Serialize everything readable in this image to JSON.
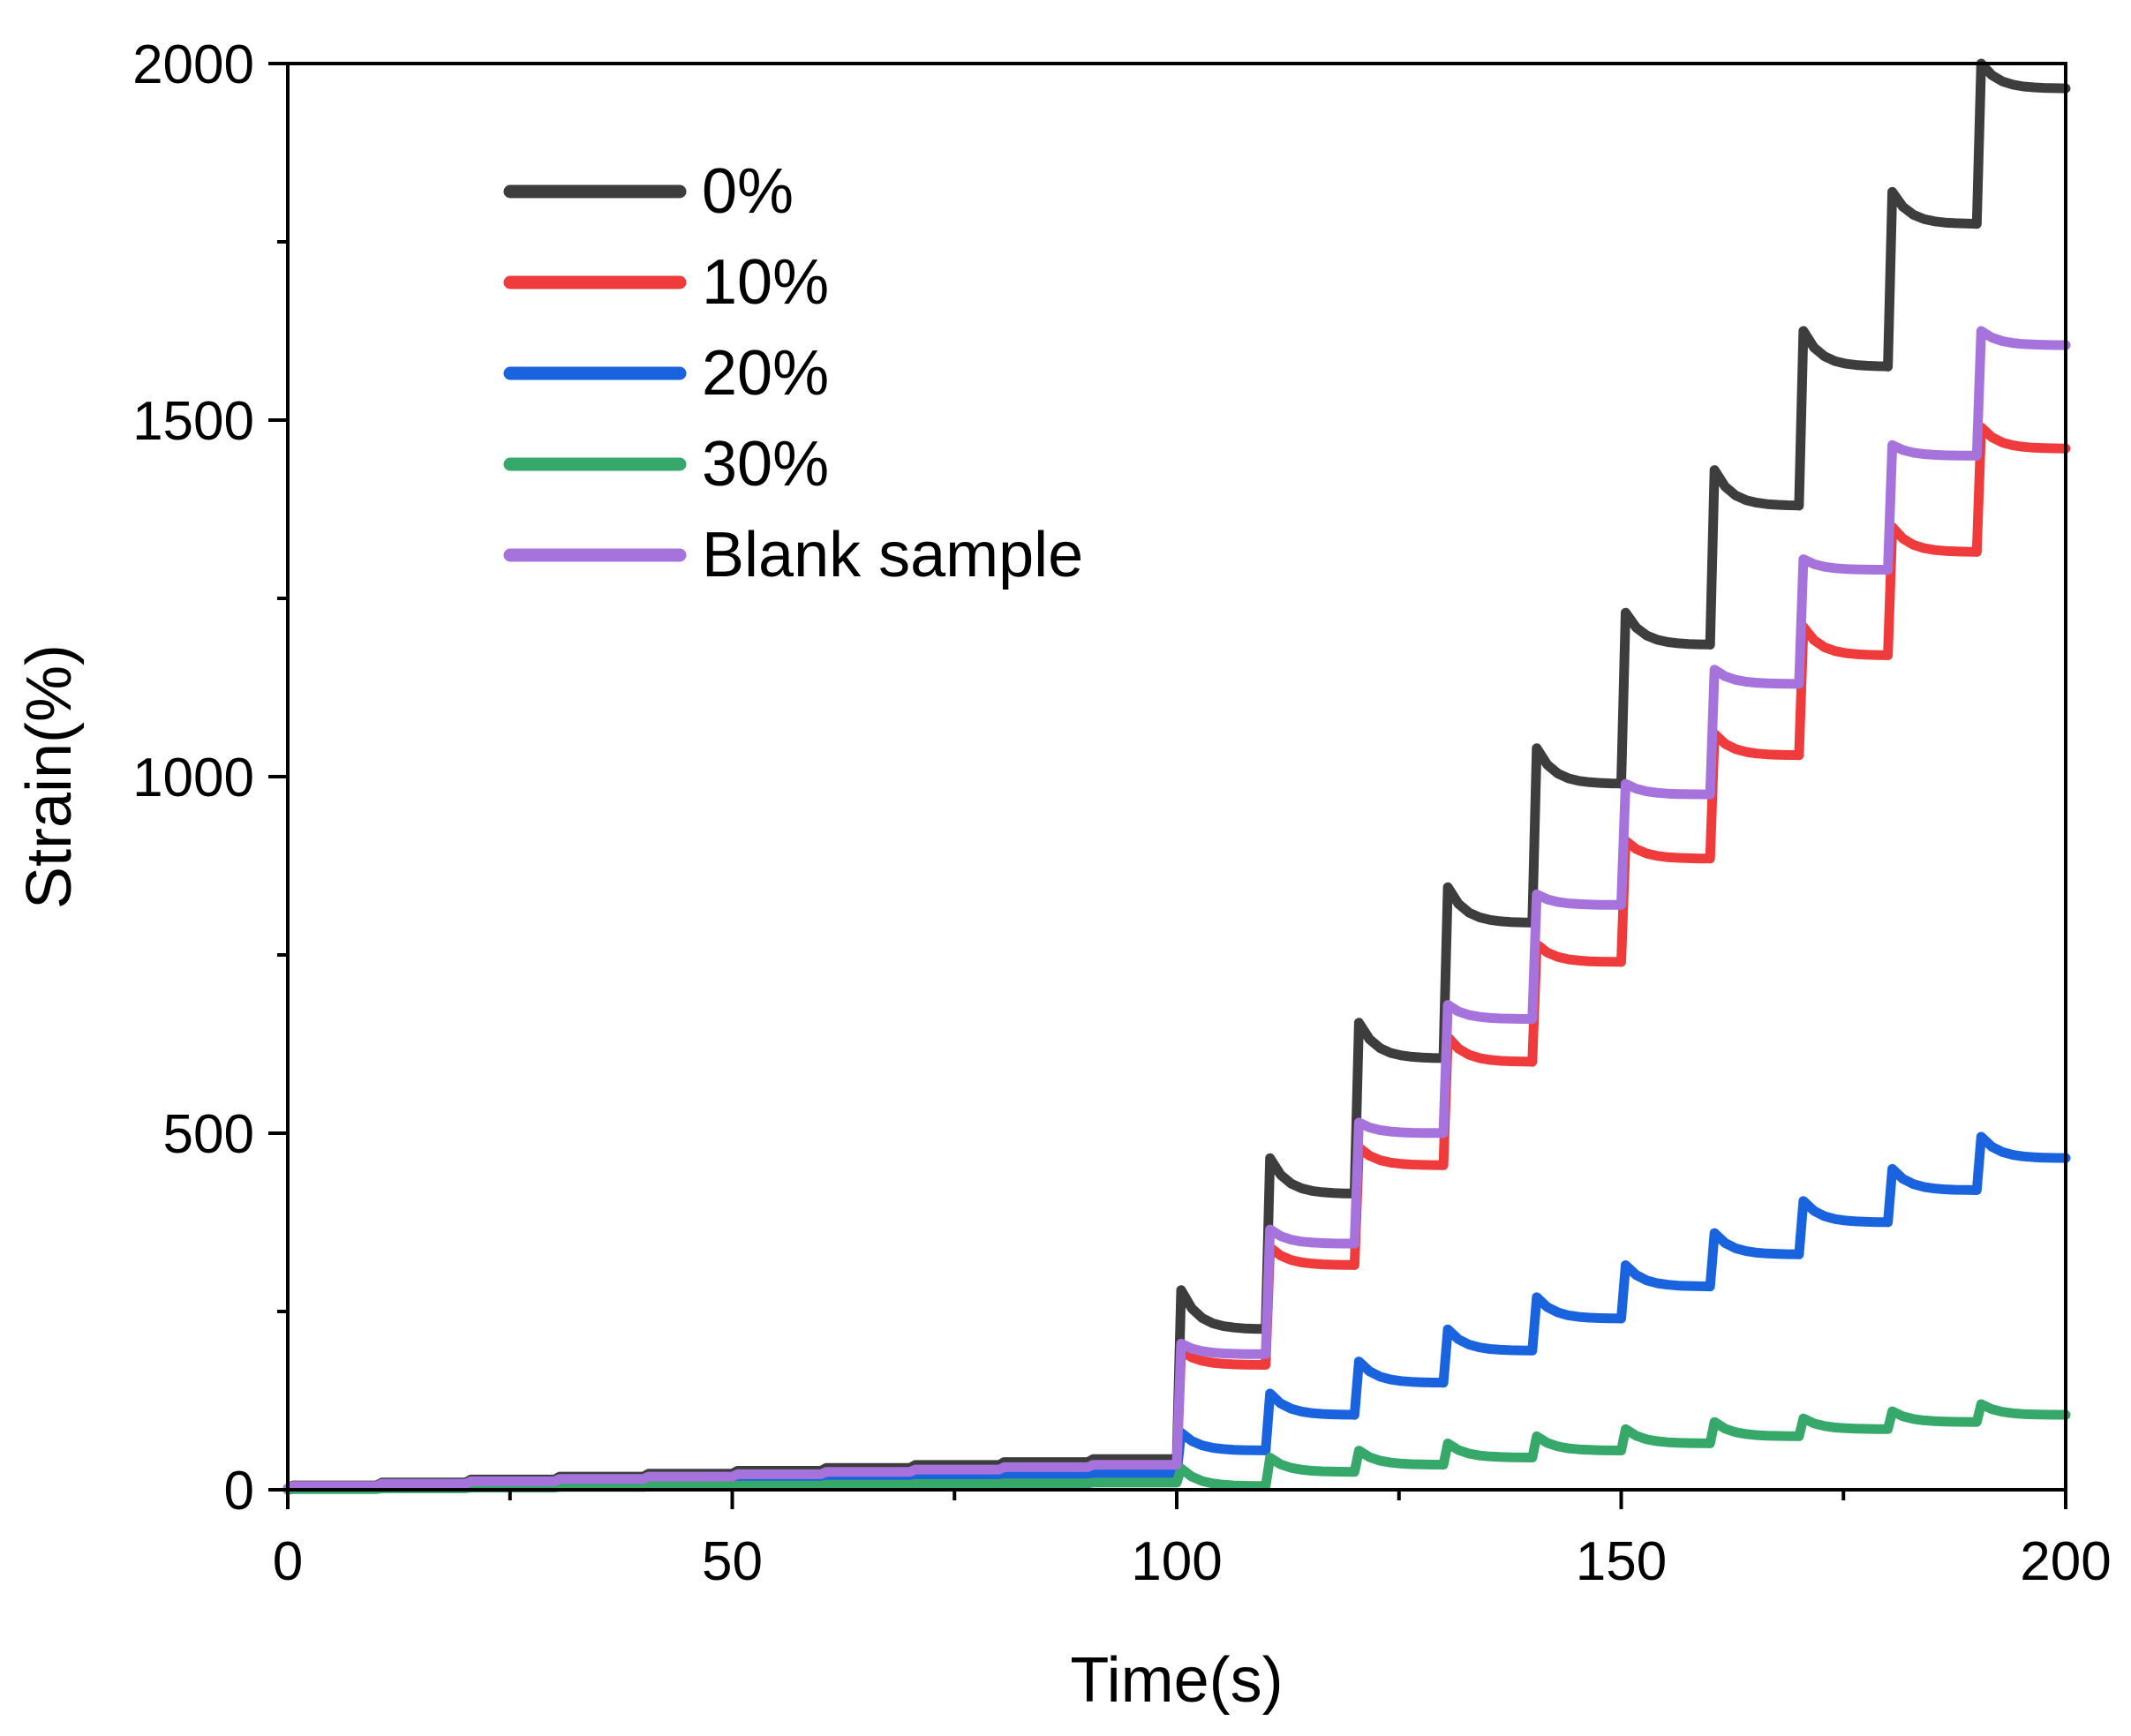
{
  "chart_data": {
    "type": "line",
    "xlabel": "Time(s)",
    "ylabel": "Strain(%)",
    "xlim": [
      0,
      200
    ],
    "ylim": [
      0,
      2000
    ],
    "xticks": [
      0,
      50,
      100,
      150,
      200
    ],
    "xtick_labels": [
      "0",
      "50",
      "100",
      "150",
      "200"
    ],
    "yticks": [
      0,
      500,
      1000,
      1500,
      2000
    ],
    "ytick_labels": [
      "0",
      "500",
      "1000",
      "1500",
      "2000"
    ],
    "grid": false,
    "legend_position": "top-left",
    "step_model": {
      "description": "Creep-recovery staircase: a new loading step every 10 s; strain jumps to a peak at each step start and relaxes to a plateau before the next step.",
      "phase1_end_time": 100,
      "step_period": 10
    },
    "series": [
      {
        "name": "0%",
        "color": "#3d3d3d",
        "phase1_start": 2,
        "phase1_end": 43,
        "step_times": [
          100,
          110,
          120,
          130,
          140,
          150,
          160,
          170,
          180,
          190
        ],
        "peaks": [
          280,
          465,
          655,
          845,
          1040,
          1230,
          1430,
          1625,
          1820,
          2000
        ],
        "plateaus": [
          225,
          415,
          605,
          795,
          990,
          1185,
          1380,
          1575,
          1775,
          1965
        ]
      },
      {
        "name": "10%",
        "color": "#ef3b3b",
        "phase1_start": 2,
        "phase1_end": 30,
        "step_times": [
          100,
          110,
          120,
          130,
          140,
          150,
          160,
          170,
          180,
          190
        ],
        "peaks": [
          195,
          340,
          480,
          635,
          765,
          910,
          1060,
          1210,
          1350,
          1490
        ],
        "plateaus": [
          175,
          315,
          455,
          600,
          740,
          885,
          1030,
          1170,
          1315,
          1460
        ]
      },
      {
        "name": "20%",
        "color": "#1a63de",
        "phase1_start": 1,
        "phase1_end": 22,
        "step_times": [
          100,
          110,
          120,
          130,
          140,
          150,
          160,
          170,
          180,
          190
        ],
        "peaks": [
          80,
          135,
          180,
          225,
          270,
          315,
          360,
          405,
          450,
          495
        ],
        "plateaus": [
          55,
          105,
          150,
          195,
          240,
          285,
          330,
          375,
          420,
          465
        ]
      },
      {
        "name": "30%",
        "color": "#35a86a",
        "phase1_start": 0,
        "phase1_end": 10,
        "step_times": [
          100,
          110,
          120,
          130,
          140,
          150,
          160,
          170,
          180,
          190
        ],
        "peaks": [
          30,
          45,
          55,
          65,
          75,
          85,
          95,
          100,
          110,
          120
        ],
        "plateaus": [
          5,
          25,
          35,
          45,
          55,
          65,
          75,
          85,
          95,
          105
        ]
      },
      {
        "name": "Blank sample",
        "color": "#a673dc",
        "phase1_start": 2,
        "phase1_end": 35,
        "step_times": [
          100,
          110,
          120,
          130,
          140,
          150,
          160,
          170,
          180,
          190
        ],
        "peaks": [
          205,
          365,
          515,
          680,
          835,
          990,
          1150,
          1305,
          1465,
          1625
        ],
        "plateaus": [
          190,
          345,
          500,
          660,
          820,
          975,
          1130,
          1290,
          1450,
          1605
        ]
      }
    ]
  }
}
